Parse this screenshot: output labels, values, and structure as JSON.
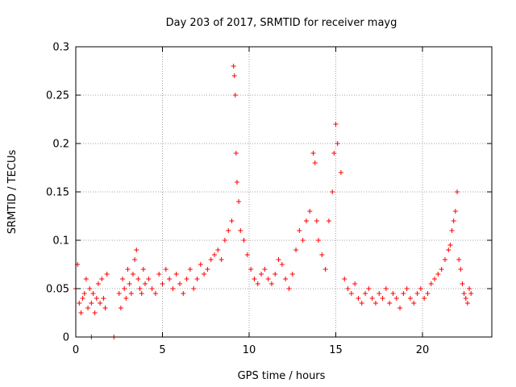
{
  "chart_data": {
    "type": "scatter",
    "title": "Day 203 of 2017, SRMTID for receiver mayg",
    "xlabel": "GPS time / hours",
    "ylabel": "SRMTID / TECUs",
    "xlim": [
      0,
      24
    ],
    "ylim": [
      0,
      0.3
    ],
    "x_ticks": [
      0,
      5,
      10,
      15,
      20
    ],
    "y_ticks": [
      0,
      0.05,
      0.1,
      0.15,
      0.2,
      0.25,
      0.3
    ],
    "x_tick_labels": [
      "0",
      "5",
      "10",
      "15",
      "20"
    ],
    "y_tick_labels": [
      "0",
      "0.05",
      "0.1",
      "0.15",
      "0.2",
      "0.25",
      "0.3"
    ],
    "grid": true,
    "marker": "+",
    "series_color": "#ff0000",
    "series": [
      {
        "name": "SRMTID",
        "x": [
          0.0,
          0.1,
          0.2,
          0.3,
          0.4,
          0.5,
          0.6,
          0.7,
          0.8,
          0.9,
          1.0,
          1.1,
          1.2,
          1.3,
          1.4,
          1.5,
          1.6,
          1.7,
          1.8,
          2.5,
          2.6,
          2.7,
          2.8,
          2.9,
          3.0,
          3.1,
          3.2,
          3.3,
          3.4,
          3.5,
          3.6,
          3.7,
          3.8,
          3.9,
          4.0,
          4.2,
          4.4,
          4.6,
          4.8,
          5.0,
          5.2,
          5.4,
          5.6,
          5.8,
          6.0,
          6.2,
          6.4,
          6.6,
          6.8,
          7.0,
          7.2,
          7.4,
          7.6,
          7.8,
          8.0,
          8.2,
          8.4,
          8.6,
          8.8,
          9.0,
          9.1,
          9.15,
          9.2,
          9.25,
          9.3,
          9.4,
          9.5,
          9.7,
          9.9,
          10.1,
          10.3,
          10.5,
          10.7,
          10.9,
          11.1,
          11.3,
          11.5,
          11.7,
          11.9,
          12.1,
          12.3,
          12.5,
          12.7,
          12.9,
          13.1,
          13.3,
          13.5,
          13.7,
          13.8,
          13.9,
          14.0,
          14.2,
          14.4,
          14.6,
          14.8,
          14.9,
          15.0,
          15.1,
          15.3,
          15.5,
          15.7,
          15.9,
          16.1,
          16.3,
          16.5,
          16.7,
          16.9,
          17.1,
          17.3,
          17.5,
          17.7,
          17.9,
          18.1,
          18.3,
          18.5,
          18.7,
          18.9,
          19.1,
          19.3,
          19.5,
          19.7,
          19.9,
          20.1,
          20.3,
          20.5,
          20.7,
          20.9,
          21.1,
          21.3,
          21.5,
          21.6,
          21.7,
          21.8,
          21.9,
          22.0,
          22.1,
          22.2,
          22.3,
          22.4,
          22.5,
          22.6,
          22.7,
          22.8,
          0.9,
          2.2
        ],
        "y": [
          0.05,
          0.075,
          0.035,
          0.025,
          0.04,
          0.045,
          0.06,
          0.03,
          0.05,
          0.035,
          0.045,
          0.025,
          0.04,
          0.055,
          0.035,
          0.06,
          0.04,
          0.03,
          0.065,
          0.045,
          0.03,
          0.06,
          0.05,
          0.04,
          0.07,
          0.055,
          0.045,
          0.065,
          0.08,
          0.09,
          0.06,
          0.05,
          0.045,
          0.07,
          0.055,
          0.06,
          0.05,
          0.045,
          0.065,
          0.055,
          0.07,
          0.06,
          0.05,
          0.065,
          0.055,
          0.045,
          0.06,
          0.07,
          0.05,
          0.06,
          0.075,
          0.065,
          0.07,
          0.08,
          0.085,
          0.09,
          0.08,
          0.1,
          0.11,
          0.12,
          0.28,
          0.27,
          0.25,
          0.19,
          0.16,
          0.14,
          0.11,
          0.1,
          0.085,
          0.07,
          0.06,
          0.055,
          0.065,
          0.07,
          0.06,
          0.055,
          0.065,
          0.08,
          0.075,
          0.06,
          0.05,
          0.065,
          0.09,
          0.11,
          0.1,
          0.12,
          0.13,
          0.19,
          0.18,
          0.12,
          0.1,
          0.085,
          0.07,
          0.12,
          0.15,
          0.19,
          0.22,
          0.2,
          0.17,
          0.06,
          0.05,
          0.045,
          0.055,
          0.04,
          0.035,
          0.045,
          0.05,
          0.04,
          0.035,
          0.045,
          0.04,
          0.05,
          0.035,
          0.045,
          0.04,
          0.03,
          0.045,
          0.05,
          0.04,
          0.035,
          0.045,
          0.05,
          0.04,
          0.045,
          0.055,
          0.06,
          0.065,
          0.07,
          0.08,
          0.09,
          0.095,
          0.11,
          0.12,
          0.13,
          0.15,
          0.08,
          0.07,
          0.055,
          0.045,
          0.04,
          0.035,
          0.05,
          0.045,
          0.0,
          0.0
        ]
      }
    ]
  }
}
